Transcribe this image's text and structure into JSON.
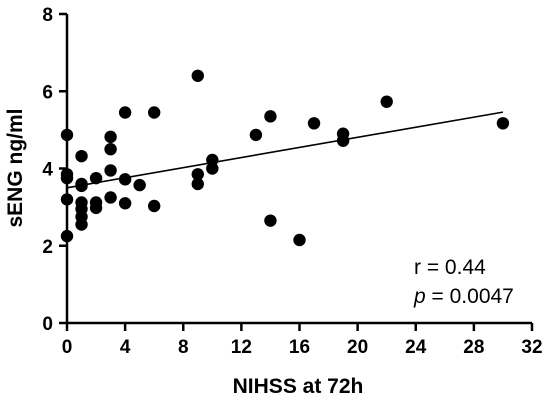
{
  "chart_data": {
    "type": "scatter",
    "title": "",
    "xlabel": "NIHSS at 72h",
    "ylabel": "sENG ng/ml",
    "xlim": [
      0,
      32
    ],
    "ylim": [
      0,
      8
    ],
    "x_ticks": [
      0,
      4,
      8,
      12,
      16,
      20,
      24,
      28,
      32
    ],
    "y_ticks": [
      0,
      2,
      4,
      6,
      8
    ],
    "grid": false,
    "legend": "none",
    "points": [
      {
        "x": 0,
        "y": 4.87
      },
      {
        "x": 0,
        "y": 3.85
      },
      {
        "x": 0,
        "y": 3.75
      },
      {
        "x": 0,
        "y": 3.2
      },
      {
        "x": 0,
        "y": 2.25
      },
      {
        "x": 1,
        "y": 4.32
      },
      {
        "x": 1,
        "y": 3.6
      },
      {
        "x": 1,
        "y": 3.55
      },
      {
        "x": 1,
        "y": 3.12
      },
      {
        "x": 1,
        "y": 2.95
      },
      {
        "x": 1,
        "y": 2.75
      },
      {
        "x": 1,
        "y": 2.55
      },
      {
        "x": 2,
        "y": 3.75
      },
      {
        "x": 2,
        "y": 3.12
      },
      {
        "x": 2,
        "y": 2.98
      },
      {
        "x": 3,
        "y": 4.82
      },
      {
        "x": 3,
        "y": 4.5
      },
      {
        "x": 3,
        "y": 3.95
      },
      {
        "x": 3,
        "y": 3.25
      },
      {
        "x": 4,
        "y": 5.45
      },
      {
        "x": 4,
        "y": 3.72
      },
      {
        "x": 4,
        "y": 3.1
      },
      {
        "x": 5,
        "y": 3.57
      },
      {
        "x": 6,
        "y": 5.45
      },
      {
        "x": 6,
        "y": 3.03
      },
      {
        "x": 9,
        "y": 6.4
      },
      {
        "x": 9,
        "y": 3.85
      },
      {
        "x": 9,
        "y": 3.6
      },
      {
        "x": 10,
        "y": 4.22
      },
      {
        "x": 10,
        "y": 4.0
      },
      {
        "x": 13,
        "y": 4.87
      },
      {
        "x": 14,
        "y": 5.35
      },
      {
        "x": 14,
        "y": 2.65
      },
      {
        "x": 16,
        "y": 2.15
      },
      {
        "x": 17,
        "y": 5.17
      },
      {
        "x": 19,
        "y": 4.9
      },
      {
        "x": 19,
        "y": 4.72
      },
      {
        "x": 22,
        "y": 5.73
      },
      {
        "x": 30,
        "y": 5.17
      }
    ],
    "regression_line": {
      "x": [
        0,
        30
      ],
      "y": [
        3.5,
        5.46
      ]
    },
    "annotations": {
      "r_text": "r = 0.44",
      "p_symbol": "p",
      "p_value_text": " = 0.0047"
    }
  }
}
